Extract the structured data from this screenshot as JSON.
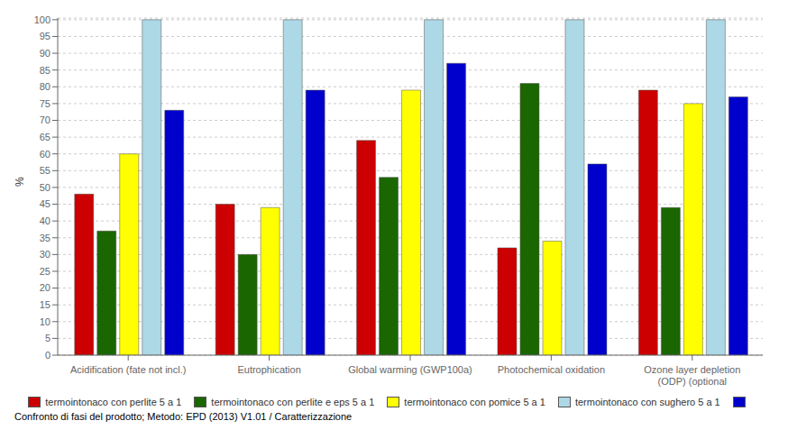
{
  "chart_data": {
    "type": "bar",
    "categories": [
      "Acidification (fate not incl.)",
      "Eutrophication",
      "Global warming (GWP100a)",
      "Photochemical oxidation",
      "Ozone layer depletion\n(ODP) (optional"
    ],
    "series": [
      {
        "name": "termointonaco con perlite 5 a 1",
        "color": "#cc0000",
        "values": [
          48,
          45,
          64,
          32,
          79
        ]
      },
      {
        "name": "termointonaco con perlite e eps 5 a 1",
        "color": "#1a6600",
        "values": [
          37,
          30,
          53,
          81,
          44
        ]
      },
      {
        "name": "termointonaco con pomice 5 a 1",
        "color": "#ffff00",
        "values": [
          60,
          44,
          79,
          34,
          75
        ]
      },
      {
        "name": "termointonaco con sughero 5 a 1",
        "color": "#add8e6",
        "values": [
          100,
          100,
          100,
          100,
          100
        ]
      },
      {
        "color": "#0000cc",
        "values": [
          73,
          79,
          87,
          57,
          77
        ]
      }
    ],
    "ylabel": "%",
    "ylim": [
      0,
      100.5
    ],
    "yticks": [
      0,
      5,
      10,
      15,
      20,
      25,
      30,
      35,
      40,
      45,
      50,
      55,
      60,
      65,
      70,
      75,
      80,
      85,
      90,
      95,
      100
    ],
    "grid": true,
    "legend": "bottom",
    "annotations": [
      "Confronto di fasi del prodotto;  Metodo: EPD (2013) V1.01 / Caratterizzazione"
    ]
  }
}
